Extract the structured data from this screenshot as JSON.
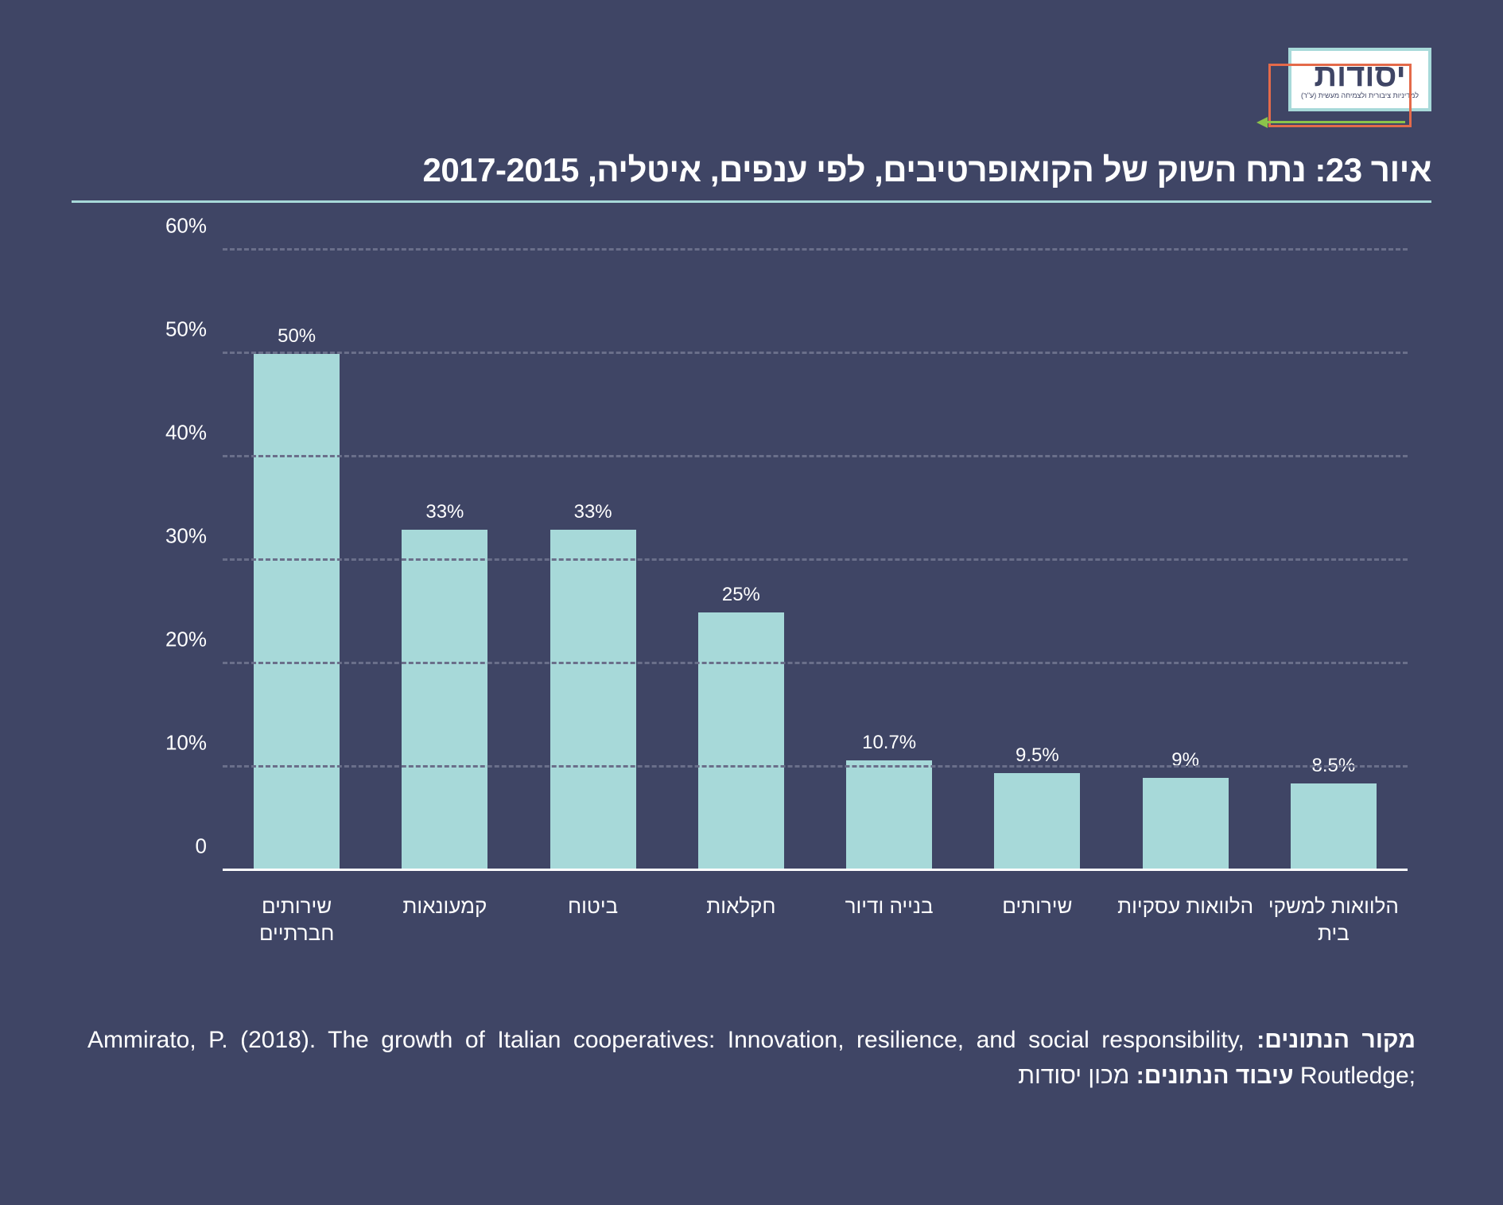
{
  "logo": {
    "text": "יסודות",
    "sub": "למדיניות ציבורית ולצמיחה מעשית (ע\"ר)"
  },
  "title": "איור 23: נתח השוק של הקואופרטיבים, לפי ענפים, איטליה, 2017-2015",
  "chart": {
    "type": "bar",
    "ylim": [
      0,
      60
    ],
    "ytick_step": 10,
    "yticks": [
      0,
      10,
      20,
      30,
      40,
      50,
      60
    ],
    "ytick_labels": [
      "0",
      "10%",
      "20%",
      "30%",
      "40%",
      "50%",
      "60%"
    ],
    "bar_color": "#a7d9d9",
    "grid_color": "#6a6f8a",
    "background_color": "#3f4565",
    "text_color": "#ffffff",
    "bar_width": 0.58,
    "value_fontsize": 24,
    "axis_label_fontsize": 26,
    "categories": [
      "שירותים חברתיים",
      "קמעונאות",
      "ביטוח",
      "חקלאות",
      "בנייה ודיור",
      "שירותים",
      "הלוואות עסקיות",
      "הלוואות למשקי בית"
    ],
    "values": [
      50,
      33,
      33,
      25,
      10.7,
      9.5,
      9,
      8.5
    ],
    "value_labels": [
      "50%",
      "33%",
      "33%",
      "25%",
      "10.7%",
      "9.5%",
      "9%",
      "8.5%"
    ]
  },
  "footer": {
    "source_label": "מקור הנתונים:",
    "source_text": "Ammirato, P. (2018). The growth of Italian cooperatives: Innovation, resilience, and social responsibility, Routledge;",
    "proc_label": "עיבוד הנתונים:",
    "proc_text": "מכון יסודות"
  }
}
